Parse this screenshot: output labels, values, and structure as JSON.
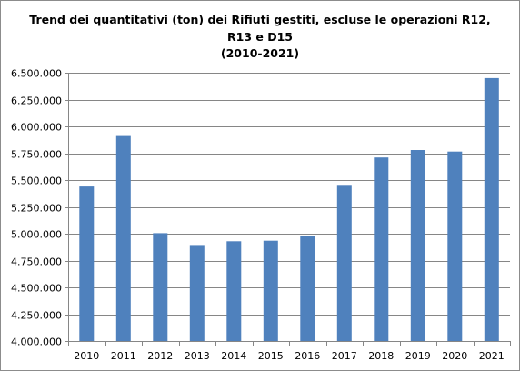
{
  "chart_data": {
    "type": "bar",
    "title_lines": [
      "Trend dei quantitativi (ton) dei Rifiuti gestiti, escluse le operazioni R12,",
      "R13 e D15",
      "(2010-2021)"
    ],
    "categories": [
      "2010",
      "2011",
      "2012",
      "2013",
      "2014",
      "2015",
      "2016",
      "2017",
      "2018",
      "2019",
      "2020",
      "2021"
    ],
    "values": [
      5440000,
      5910000,
      5005000,
      4895000,
      4930000,
      4935000,
      4975000,
      5455000,
      5710000,
      5780000,
      5765000,
      6450000
    ],
    "ylim": [
      4000000,
      6500000
    ],
    "ytick_values": [
      4000000,
      4250000,
      4500000,
      4750000,
      5000000,
      5250000,
      5500000,
      5750000,
      6000000,
      6250000,
      6500000
    ],
    "ytick_labels": [
      "4.000.000",
      "4.250.000",
      "4.500.000",
      "4.750.000",
      "5.000.000",
      "5.250.000",
      "5.500.000",
      "5.750.000",
      "6.000.000",
      "6.250.000",
      "6.500.000"
    ],
    "xlabel": "",
    "ylabel": "",
    "grid": true,
    "bar_color": "#4f81bd",
    "grid_color": "#868686"
  }
}
